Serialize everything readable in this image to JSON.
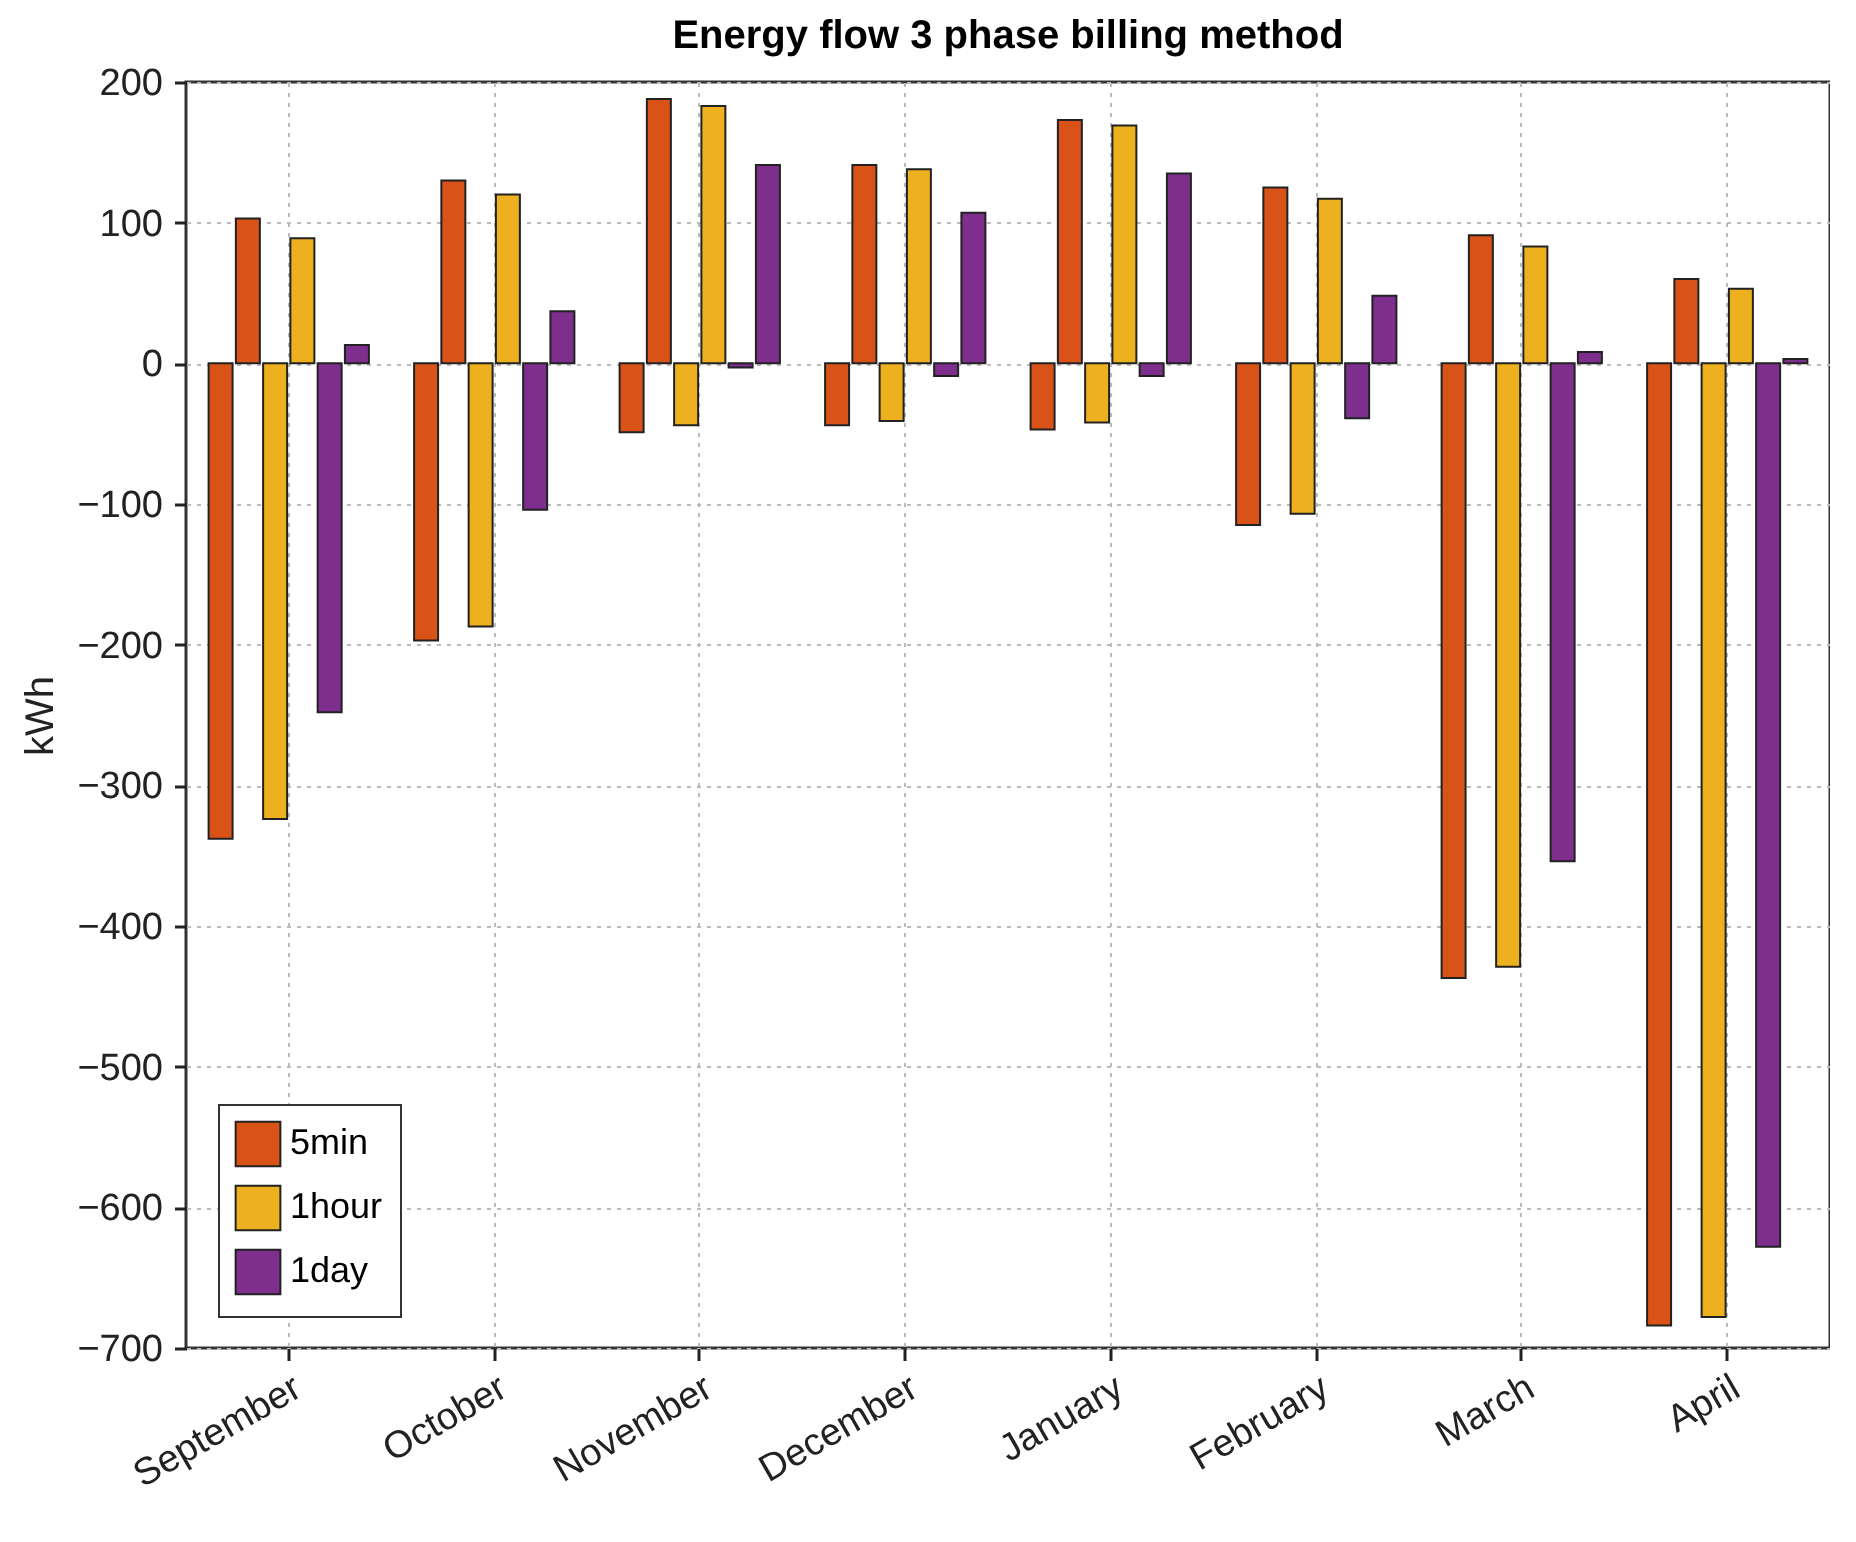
{
  "chart_data": {
    "type": "bar",
    "title": "Energy flow 3 phase billing method",
    "ylabel": "kWh",
    "categories": [
      "September",
      "October",
      "November",
      "December",
      "January",
      "February",
      "March",
      "April"
    ],
    "series": [
      {
        "name": "5min",
        "color": "#d95319",
        "values": [
          -338,
          -197,
          -49,
          -44,
          -47,
          -115,
          -437,
          -684
        ]
      },
      {
        "color": "#d95319",
        "values": [
          103,
          130,
          188,
          141,
          173,
          125,
          91,
          60
        ]
      },
      {
        "name": "1hour",
        "color": "#edb120",
        "values": [
          -324,
          -187,
          -44,
          -41,
          -42,
          -107,
          -429,
          -678
        ]
      },
      {
        "color": "#edb120",
        "values": [
          89,
          120,
          183,
          138,
          169,
          117,
          83,
          53
        ]
      },
      {
        "name": "1day",
        "color": "#7e2f8e",
        "values": [
          -248,
          -104,
          -3,
          -9,
          -9,
          -39,
          -354,
          -628
        ]
      },
      {
        "color": "#7e2f8e",
        "values": [
          13,
          37,
          141,
          107,
          135,
          48,
          8,
          3
        ]
      }
    ],
    "ylim": [
      -700,
      200
    ],
    "yticks": [
      -700,
      -600,
      -500,
      -400,
      -300,
      -200,
      -100,
      0,
      100,
      200
    ],
    "grid": true,
    "legend": "bottom left"
  }
}
